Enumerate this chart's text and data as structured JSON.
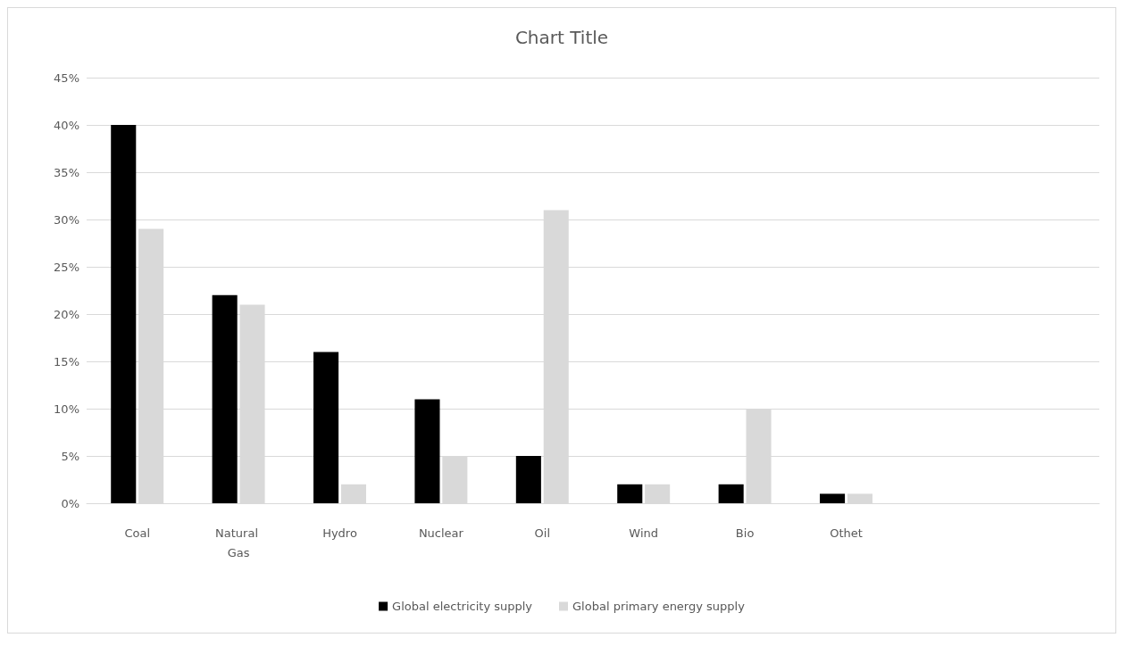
{
  "chart_data": {
    "type": "bar",
    "title": "Chart Title",
    "categories": [
      "Coal",
      "Natural Gas",
      "Hydro",
      "Nuclear",
      "Oil",
      "Wind",
      "Bio",
      "Othet",
      null,
      null
    ],
    "series": [
      {
        "name": "Global electricity supply",
        "color": "#000000",
        "values": [
          40,
          22,
          16,
          11,
          5,
          2,
          2,
          1,
          null,
          null
        ]
      },
      {
        "name": "Global primary energy supply",
        "color": "#d9d9d9",
        "values": [
          29,
          21,
          2,
          5,
          31,
          2,
          10,
          1,
          null,
          null
        ]
      }
    ],
    "ylim": [
      0,
      45
    ],
    "yticks": [
      {
        "value": 0,
        "label": "0%"
      },
      {
        "value": 5,
        "label": "5%"
      },
      {
        "value": 10,
        "label": "10%"
      },
      {
        "value": 15,
        "label": "15%"
      },
      {
        "value": 20,
        "label": "20%"
      },
      {
        "value": 25,
        "label": "25%"
      },
      {
        "value": 30,
        "label": "30%"
      },
      {
        "value": 35,
        "label": "35%"
      },
      {
        "value": 40,
        "label": "40%"
      },
      {
        "value": 45,
        "label": "45%"
      }
    ],
    "grid": "y",
    "legend": "bottom"
  }
}
